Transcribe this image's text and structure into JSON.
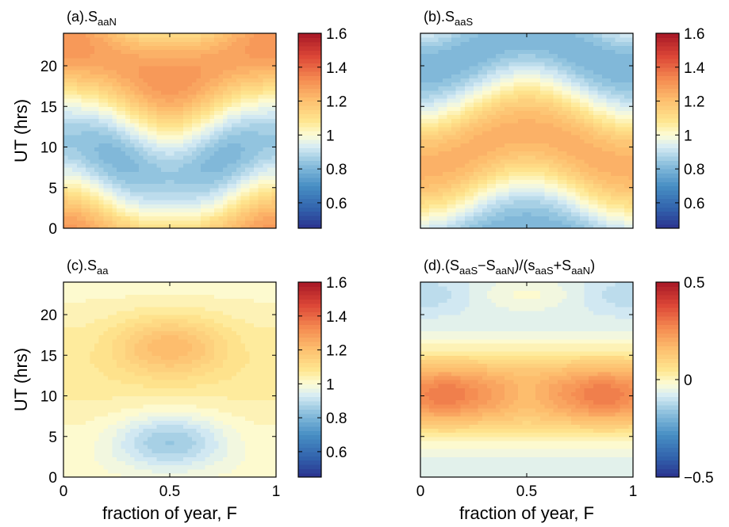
{
  "figure": {
    "xlabel": "fraction of year, F",
    "ylabel": "UT (hrs)"
  },
  "chart_data": [
    {
      "type": "heatmap",
      "title": {
        "pre": "(a).S",
        "sub": "aaN",
        "segments": [
          [
            "(a).S",
            ""
          ],
          [
            "aaN",
            "sub"
          ]
        ]
      },
      "xlabel": "",
      "ylabel": "UT (hrs)",
      "xlim": [
        0,
        1
      ],
      "ylim": [
        0,
        24
      ],
      "xticks": [
        0,
        0.5,
        1
      ],
      "xticklabels": [
        "",
        "",
        ""
      ],
      "yticks": [
        0,
        5,
        10,
        15,
        20
      ],
      "yticklabels": [
        "0",
        "5",
        "10",
        "15",
        "20"
      ],
      "colorbar": {
        "min": 0.45,
        "max": 1.6,
        "ticks": [
          0.6,
          0.8,
          1,
          1.2,
          1.4,
          1.6
        ],
        "ticklabels": [
          "0.6",
          "0.8",
          "1",
          "1.2",
          "1.4",
          "1.6"
        ]
      },
      "field": {
        "kind": "saaN",
        "description_values": {
          "max": 1.3,
          "min": 0.8,
          "max_near": "F=0.5, UT=19",
          "min_near": "F=0.5, UT=8"
        }
      }
    },
    {
      "type": "heatmap",
      "title": {
        "segments": [
          [
            "(b).S",
            ""
          ],
          [
            "aaS",
            "sub"
          ]
        ]
      },
      "xlabel": "",
      "ylabel": "",
      "xlim": [
        0,
        1
      ],
      "ylim": [
        0,
        24
      ],
      "xticks": [
        0,
        0.5,
        1
      ],
      "xticklabels": [
        "",
        "",
        ""
      ],
      "yticks": [
        0,
        5,
        10,
        15,
        20
      ],
      "yticklabels": [
        "",
        "",
        "",
        "",
        ""
      ],
      "colorbar": {
        "min": 0.45,
        "max": 1.6,
        "ticks": [
          0.6,
          0.8,
          1,
          1.2,
          1.4,
          1.6
        ],
        "ticklabels": [
          "0.6",
          "0.8",
          "1",
          "1.2",
          "1.4",
          "1.6"
        ]
      },
      "field": {
        "kind": "saaS",
        "description_values": {
          "max": 1.25,
          "min": 0.8,
          "max_near": "F=0, UT=10",
          "min_near": "F=0, UT=21"
        }
      }
    },
    {
      "type": "heatmap",
      "title": {
        "segments": [
          [
            "(c).S",
            ""
          ],
          [
            "aa",
            "sub"
          ]
        ]
      },
      "xlabel": "fraction of year, F",
      "ylabel": "UT (hrs)",
      "xlim": [
        0,
        1
      ],
      "ylim": [
        0,
        24
      ],
      "xticks": [
        0,
        0.5,
        1
      ],
      "xticklabels": [
        "0",
        "0.5",
        "1"
      ],
      "yticks": [
        0,
        5,
        10,
        15,
        20
      ],
      "yticklabels": [
        "0",
        "5",
        "10",
        "15",
        "20"
      ],
      "colorbar": {
        "min": 0.45,
        "max": 1.6,
        "ticks": [
          0.6,
          0.8,
          1,
          1.2,
          1.4,
          1.6
        ],
        "ticklabels": [
          "0.6",
          "0.8",
          "1",
          "1.2",
          "1.4",
          "1.6"
        ]
      },
      "field": {
        "kind": "saa",
        "description_values": {
          "max": 1.2,
          "min": 0.87,
          "max_near": "F=0.5, UT=16.5",
          "min_near": "F=0.5, UT=4.5"
        }
      }
    },
    {
      "type": "heatmap",
      "title": {
        "segments": [
          [
            "(d).(S",
            ""
          ],
          [
            "aaS",
            "sub"
          ],
          [
            "−S",
            ""
          ],
          [
            "aaN",
            "sub"
          ],
          [
            ")/(s",
            ""
          ],
          [
            "aaS",
            "sub"
          ],
          [
            "+S",
            ""
          ],
          [
            "aaN",
            "sub"
          ],
          [
            ")",
            ""
          ]
        ]
      },
      "xlabel": "fraction of year, F",
      "ylabel": "",
      "xlim": [
        0,
        1
      ],
      "ylim": [
        0,
        24
      ],
      "xticks": [
        0,
        0.5,
        1
      ],
      "xticklabels": [
        "0",
        "0.5",
        "1"
      ],
      "yticks": [
        0,
        5,
        10,
        15,
        20
      ],
      "yticklabels": [
        "",
        "",
        "",
        "",
        ""
      ],
      "colorbar": {
        "min": -0.5,
        "max": 0.5,
        "ticks": [
          -0.5,
          0,
          0.5
        ],
        "ticklabels": [
          "−0.5",
          "0",
          "0.5"
        ]
      },
      "field": {
        "kind": "diff",
        "description_values": {
          "max": 0.22,
          "min": -0.2,
          "max_near": "F=0.1 and 0.85, UT=10",
          "min_near": "F=0, UT=23"
        }
      }
    }
  ]
}
